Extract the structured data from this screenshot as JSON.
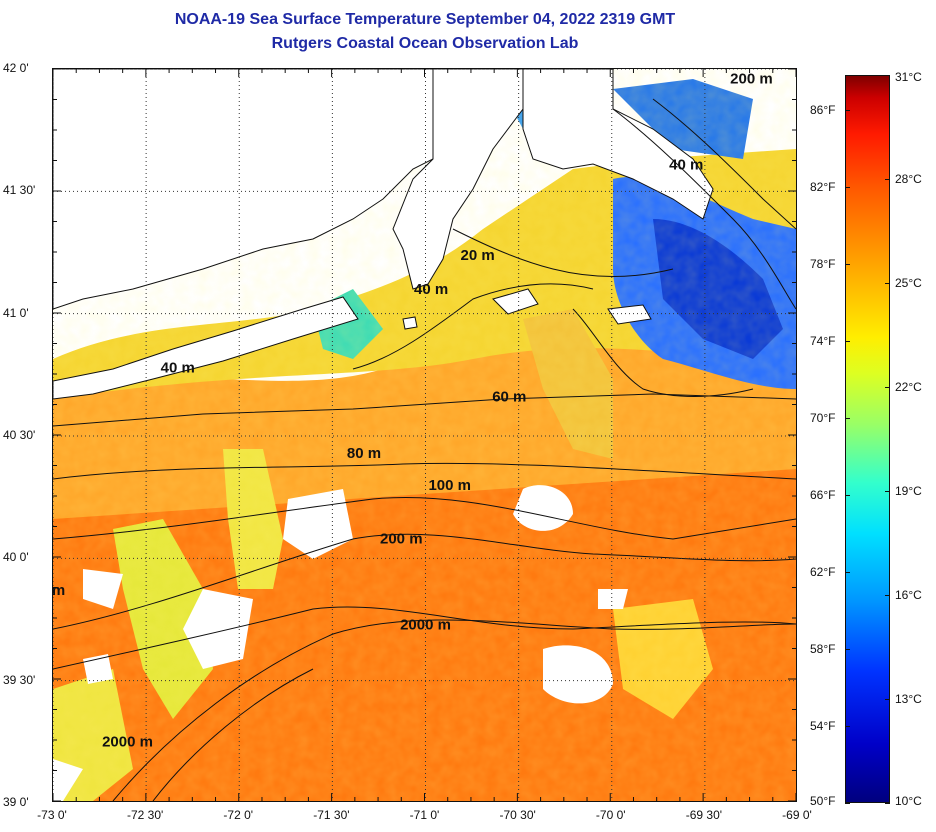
{
  "title": {
    "line1": "NOAA-19 Sea Surface Temperature September 04, 2022 2319 GMT",
    "line2": "Rutgers Coastal Ocean Observation Lab"
  },
  "map": {
    "lon_min": -73.0,
    "lon_max": -69.0,
    "lat_min": 39.0,
    "lat_max": 42.0,
    "gridlines": "dotted",
    "lat_labels": [
      {
        "value": 42.0,
        "text": "42 0'"
      },
      {
        "value": 41.5,
        "text": "41 30'"
      },
      {
        "value": 41.0,
        "text": "41 0'"
      },
      {
        "value": 40.5,
        "text": "40 30'"
      },
      {
        "value": 40.0,
        "text": "40 0'"
      },
      {
        "value": 39.5,
        "text": "39 30'"
      },
      {
        "value": 39.0,
        "text": "39 0'"
      }
    ],
    "lon_labels": [
      {
        "value": -73.0,
        "text": "-73 0'"
      },
      {
        "value": -72.5,
        "text": "-72 30'"
      },
      {
        "value": -72.0,
        "text": "-72 0'"
      },
      {
        "value": -71.5,
        "text": "-71 30'"
      },
      {
        "value": -71.0,
        "text": "-71 0'"
      },
      {
        "value": -70.5,
        "text": "-70 30'"
      },
      {
        "value": -70.0,
        "text": "-70 0'"
      },
      {
        "value": -69.5,
        "text": "-69 30'"
      },
      {
        "value": -69.0,
        "text": "-69 0'"
      }
    ],
    "contour_labels": [
      {
        "text": "20 m",
        "lon": -70.72,
        "lat": 41.22
      },
      {
        "text": "40 m",
        "lon": -70.97,
        "lat": 41.08
      },
      {
        "text": "40 m",
        "lon": -72.33,
        "lat": 40.76
      },
      {
        "text": "60 m",
        "lon": -70.55,
        "lat": 40.64
      },
      {
        "text": "80 m",
        "lon": -71.33,
        "lat": 40.41
      },
      {
        "text": "100 m",
        "lon": -70.87,
        "lat": 40.28
      },
      {
        "text": "200 m",
        "lon": -71.13,
        "lat": 40.06
      },
      {
        "text": "2000 m",
        "lon": -71.0,
        "lat": 39.71
      },
      {
        "text": "200 m",
        "lon": -69.25,
        "lat": 41.94
      },
      {
        "text": "40 m",
        "lon": -69.6,
        "lat": 41.59
      },
      {
        "text": "2000 m",
        "lon": -72.6,
        "lat": 39.23
      },
      {
        "text": "m",
        "lon": -72.97,
        "lat": 39.85
      }
    ]
  },
  "colorbar": {
    "c_min": 10,
    "c_max": 31,
    "celsius_labels": [
      "31°C",
      "28°C",
      "25°C",
      "22°C",
      "19°C",
      "16°C",
      "13°C",
      "10°C"
    ],
    "fahrenheit_labels": [
      "86°F",
      "82°F",
      "78°F",
      "74°F",
      "70°F",
      "66°F",
      "62°F",
      "58°F",
      "54°F",
      "50°F"
    ]
  },
  "colors": {
    "title": "#1f2aa6",
    "land": "#ffffff",
    "coastline": "#111111"
  }
}
